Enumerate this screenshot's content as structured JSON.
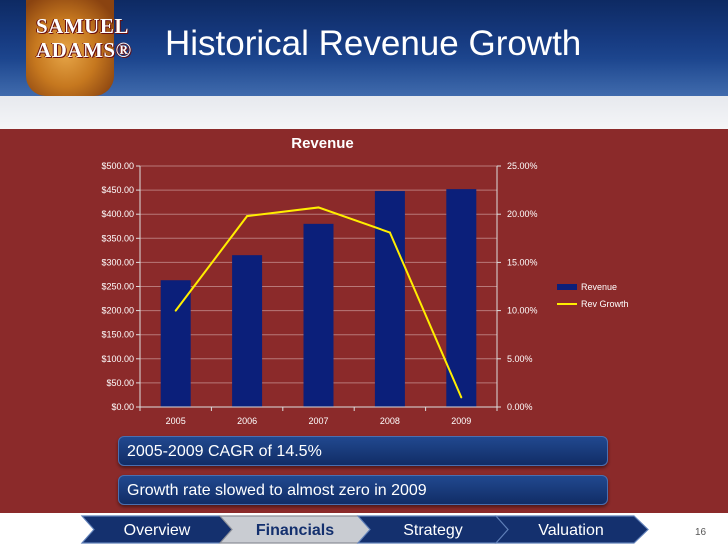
{
  "header": {
    "logo_line1": "SAMUEL",
    "logo_line2": "ADAMS®",
    "title": "Historical Revenue Growth"
  },
  "chart_data": {
    "type": "bar",
    "title": "Revenue",
    "categories": [
      "2005",
      "2006",
      "2007",
      "2008",
      "2009"
    ],
    "series": [
      {
        "name": "Revenue",
        "type": "bar",
        "axis": "left",
        "color": "#0b1f7a",
        "values": [
          263,
          315,
          380,
          448,
          452
        ]
      },
      {
        "name": "Rev Growth",
        "type": "line",
        "axis": "right",
        "color": "#ffee00",
        "values": [
          10.0,
          19.8,
          20.7,
          18.1,
          1.0
        ]
      }
    ],
    "y_left": {
      "ylim": [
        0,
        500
      ],
      "ticks": [
        0,
        50,
        100,
        150,
        200,
        250,
        300,
        350,
        400,
        450,
        500
      ],
      "tick_labels": [
        "$0.00",
        "$50.00",
        "$100.00",
        "$150.00",
        "$200.00",
        "$250.00",
        "$300.00",
        "$350.00",
        "$400.00",
        "$450.00",
        "$500.00"
      ]
    },
    "y_right": {
      "ylim": [
        0,
        25
      ],
      "ticks": [
        0,
        5,
        10,
        15,
        20,
        25
      ],
      "tick_labels": [
        "0.00%",
        "5.00%",
        "10.00%",
        "15.00%",
        "20.00%",
        "25.00%"
      ]
    },
    "legend": [
      "Revenue",
      "Rev Growth"
    ],
    "legend_position": "right",
    "grid": true
  },
  "callouts": [
    "2005-2009 CAGR of 14.5%",
    "Growth rate slowed to almost zero in 2009"
  ],
  "nav": {
    "items": [
      {
        "label": "Overview",
        "active": false
      },
      {
        "label": "Financials",
        "active": true
      },
      {
        "label": "Strategy",
        "active": false
      },
      {
        "label": "Valuation",
        "active": false
      }
    ]
  },
  "page_number": "16",
  "colors": {
    "background": "#8b2a2a",
    "bar": "#0b1f7a",
    "growth_line": "#ffee00",
    "header": "#163a80"
  }
}
